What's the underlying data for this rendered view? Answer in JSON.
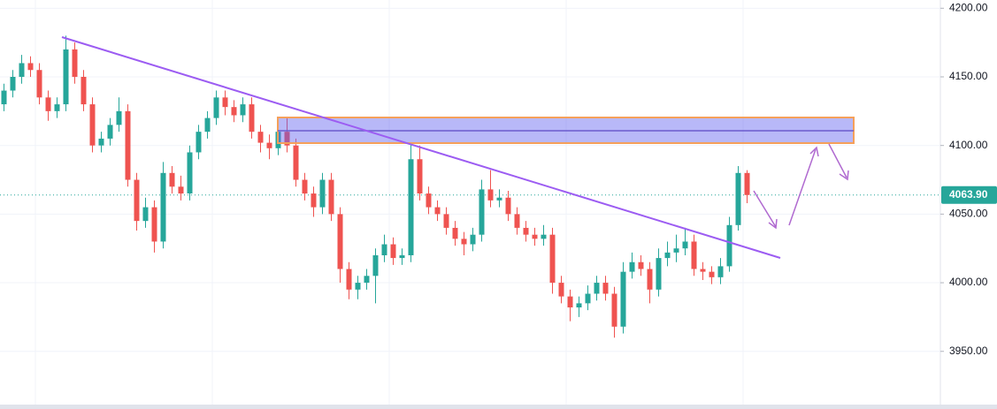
{
  "chart_data": {
    "type": "candlestick",
    "up_color": "#26a69a",
    "down_color": "#ef5350",
    "ylim": [
      3908,
      4206
    ],
    "yticks": [
      {
        "value": 3950,
        "label": "3950.00"
      },
      {
        "value": 4000,
        "label": "4000.00"
      },
      {
        "value": 4050,
        "label": "4050.00"
      },
      {
        "value": 4100,
        "label": "4100.00"
      },
      {
        "value": 4150,
        "label": "4150.00"
      },
      {
        "value": 4200,
        "label": "4200.00"
      }
    ],
    "grid": true,
    "last_price": {
      "value": 4063.9,
      "label": "4063.90"
    },
    "open": [
      4130,
      4140,
      4150,
      4160,
      4155,
      4135,
      4125,
      4130,
      4170,
      4150,
      4130,
      4100,
      4105,
      4115,
      4125,
      4075,
      4045,
      4055,
      4030,
      4080,
      4070,
      4065,
      4095,
      4110,
      4120,
      4135,
      4128,
      4122,
      4130,
      4110,
      4102,
      4098,
      4110,
      4100,
      4075,
      4065,
      4055,
      4075,
      4050,
      4010,
      3995,
      4000,
      4005,
      4020,
      4028,
      4018,
      4020,
      4090,
      4065,
      4055,
      4050,
      4040,
      4032,
      4028,
      4035,
      4068,
      4060,
      4062,
      4050,
      4040,
      4035,
      4032,
      4035,
      4000,
      3990,
      3982,
      3985,
      3992,
      4000,
      3992,
      3968,
      4008,
      4015,
      4010,
      3995,
      4018,
      4022,
      4025,
      4030,
      4010,
      4008,
      4004,
      4012,
      4042,
      4080
    ],
    "high": [
      4145,
      4155,
      4166,
      4165,
      4160,
      4140,
      4135,
      4180,
      4175,
      4155,
      4135,
      4110,
      4120,
      4135,
      4130,
      4080,
      4062,
      4060,
      4088,
      4085,
      4078,
      4100,
      4115,
      4125,
      4140,
      4140,
      4133,
      4135,
      4135,
      4115,
      4108,
      4118,
      4120,
      4105,
      4080,
      4070,
      4080,
      4080,
      4055,
      4015,
      4005,
      4010,
      4025,
      4035,
      4033,
      4025,
      4102,
      4100,
      4070,
      4060,
      4055,
      4045,
      4037,
      4040,
      4075,
      4082,
      4068,
      4067,
      4055,
      4045,
      4040,
      4042,
      4040,
      4005,
      3995,
      3990,
      3998,
      4005,
      4005,
      3997,
      4015,
      4022,
      4020,
      4015,
      4025,
      4030,
      4035,
      4040,
      4035,
      4015,
      4012,
      4018,
      4048,
      4085,
      4082
    ],
    "low": [
      4125,
      4135,
      4145,
      4150,
      4130,
      4118,
      4120,
      4125,
      4145,
      4125,
      4095,
      4095,
      4100,
      4110,
      4070,
      4038,
      4040,
      4022,
      4025,
      4065,
      4060,
      4060,
      4090,
      4105,
      4115,
      4122,
      4117,
      4117,
      4105,
      4095,
      4090,
      4093,
      4095,
      4070,
      4060,
      4048,
      4050,
      4045,
      4000,
      3988,
      3988,
      3995,
      3985,
      4015,
      4013,
      4013,
      4015,
      4060,
      4050,
      4045,
      4035,
      4027,
      4020,
      4023,
      4030,
      4055,
      4055,
      4045,
      4035,
      4030,
      4027,
      4027,
      3992,
      3985,
      3972,
      3975,
      3980,
      3987,
      3987,
      3960,
      3963,
      4003,
      4005,
      3985,
      3990,
      4012,
      4015,
      4020,
      4005,
      4002,
      3999,
      3999,
      4008,
      4038,
      4058
    ],
    "close": [
      4140,
      4150,
      4160,
      4155,
      4135,
      4125,
      4130,
      4170,
      4150,
      4130,
      4100,
      4105,
      4115,
      4125,
      4075,
      4045,
      4055,
      4030,
      4080,
      4070,
      4065,
      4095,
      4110,
      4120,
      4135,
      4128,
      4122,
      4130,
      4110,
      4102,
      4098,
      4110,
      4100,
      4075,
      4065,
      4055,
      4075,
      4050,
      4010,
      3995,
      4000,
      4005,
      4020,
      4028,
      4018,
      4020,
      4090,
      4065,
      4055,
      4050,
      4040,
      4032,
      4028,
      4035,
      4068,
      4060,
      4062,
      4050,
      4040,
      4035,
      4032,
      4035,
      4000,
      3990,
      3982,
      3985,
      3992,
      4000,
      3992,
      3968,
      4008,
      4015,
      4010,
      3995,
      4018,
      4022,
      4025,
      4030,
      4010,
      4008,
      4004,
      4012,
      4042,
      4080,
      4063.9
    ]
  }
}
